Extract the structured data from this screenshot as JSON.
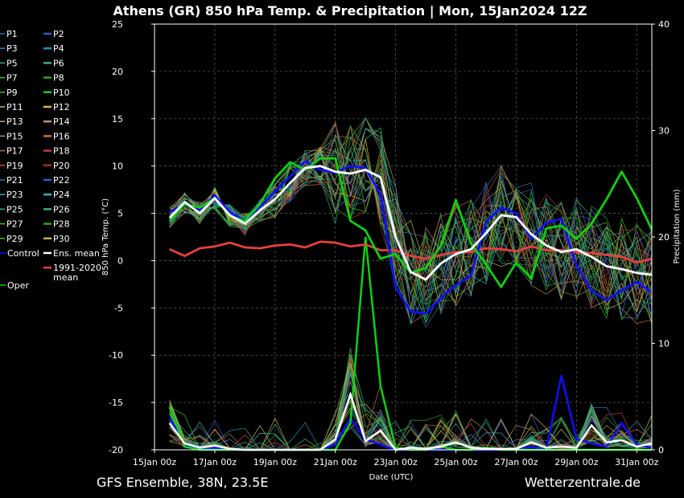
{
  "chart_data": {
    "type": "line",
    "title": "Athens  (GR)  850 hPa Temp. & Precipitation | Mon, 15Jan2024 12Z",
    "xlabel": "Date (UTC)",
    "ylabel": "850 hPa Temp. (°C)",
    "y2label": "Precipitation (mm)",
    "x_ticks": [
      "15Jan 00z",
      "17Jan 00z",
      "19Jan 00z",
      "21Jan 00z",
      "23Jan 00z",
      "25Jan 00z",
      "27Jan 00z",
      "29Jan 00z",
      "31Jan 00z"
    ],
    "ylim": [
      -20,
      25
    ],
    "y_ticks": [
      25,
      20,
      15,
      10,
      5,
      0,
      -5,
      -10,
      -15,
      -20
    ],
    "y2lim": [
      0,
      40
    ],
    "y2_ticks": [
      40,
      30,
      20,
      10,
      0
    ],
    "grid": true,
    "x_days": [
      0.5,
      1,
      1.5,
      2,
      2.5,
      3,
      3.5,
      4,
      4.5,
      5,
      5.5,
      6,
      6.5,
      7,
      7.5,
      8,
      8.5,
      9,
      9.5,
      10,
      10.5,
      11,
      11.5,
      12,
      12.5,
      13,
      13.5,
      14,
      14.5,
      15,
      15.5,
      16,
      16.5
    ],
    "xlim_days": [
      0,
      16.5
    ],
    "series": [
      {
        "name": "Ens. mean",
        "role": "mean",
        "values": [
          4.5,
          6.2,
          5.0,
          6.6,
          4.8,
          3.9,
          5.3,
          6.5,
          8.2,
          9.8,
          10.0,
          9.4,
          9.2,
          9.6,
          8.8,
          2.5,
          -1.2,
          -2.0,
          -0.3,
          0.7,
          1.2,
          2.9,
          4.8,
          4.6,
          2.8,
          1.6,
          0.9,
          1.2,
          0.4,
          -0.6,
          -0.9,
          -1.3,
          -1.5
        ]
      },
      {
        "name": "Control",
        "role": "control",
        "values": [
          5.1,
          6.0,
          5.4,
          6.9,
          5.1,
          4.2,
          5.7,
          7.3,
          8.9,
          10.5,
          9.6,
          9.3,
          10.0,
          9.8,
          7.0,
          -2.8,
          -5.4,
          -5.6,
          -3.9,
          -2.6,
          -1.6,
          4.1,
          5.6,
          5.0,
          2.3,
          4.0,
          4.4,
          -0.5,
          -3.2,
          -4.2,
          -3.1,
          -2.3,
          -3.3
        ]
      },
      {
        "name": "Oper",
        "role": "oper",
        "values": [
          4.2,
          6.0,
          5.6,
          6.6,
          4.7,
          4.2,
          6.0,
          8.7,
          10.4,
          9.6,
          10.8,
          10.8,
          4.2,
          3.2,
          0.2,
          0.7,
          -1.3,
          -0.8,
          1.6,
          6.4,
          1.8,
          -0.4,
          -2.8,
          -0.2,
          -1.9,
          3.4,
          3.7,
          2.3,
          3.9,
          6.5,
          9.4,
          6.6,
          3.3
        ]
      },
      {
        "name": "1991-2020 mean",
        "role": "climate",
        "values": [
          1.2,
          0.5,
          1.3,
          1.5,
          1.9,
          1.4,
          1.3,
          1.6,
          1.7,
          1.4,
          2.0,
          1.9,
          1.5,
          1.7,
          1.1,
          1.1,
          0.5,
          0.2,
          0.6,
          0.9,
          0.9,
          1.3,
          1.2,
          1.0,
          1.5,
          1.1,
          1.1,
          0.9,
          0.8,
          0.6,
          0.4,
          -0.2,
          0.2
        ]
      }
    ],
    "members": [
      "P1",
      "P2",
      "P3",
      "P4",
      "P5",
      "P6",
      "P7",
      "P8",
      "P9",
      "P10",
      "P11",
      "P12",
      "P13",
      "P14",
      "P15",
      "P16",
      "P17",
      "P18",
      "P19",
      "P20",
      "P21",
      "P22",
      "P23",
      "P24",
      "P25",
      "P26",
      "P27",
      "P28",
      "P29",
      "P30"
    ],
    "member_colors": [
      "#3a6aa8",
      "#3a58c8",
      "#3a7ab0",
      "#2f8fb0",
      "#3aa0a8",
      "#3bb07a",
      "#4ac04a",
      "#3aa030",
      "#4ab828",
      "#25c825",
      "#c9b46a",
      "#d8b450",
      "#c8a070",
      "#c89060",
      "#c88a50",
      "#c07838",
      "#c06a4a",
      "#b84030",
      "#c04a3a",
      "#a03028",
      "#3a6ab0",
      "#3a58b8",
      "#3aa0b8",
      "#3ab0b0",
      "#35b890",
      "#3ab070",
      "#45b845",
      "#30a030",
      "#5ab828",
      "#c8b048"
    ],
    "precip_mean": [
      2.5,
      0.6,
      0.2,
      0.4,
      0.1,
      0,
      0,
      0,
      0,
      0,
      0,
      1,
      5.2,
      0.8,
      1.8,
      0,
      0.2,
      0.1,
      0.3,
      0.7,
      0.2,
      0.1,
      0.1,
      0.1,
      0.7,
      0.2,
      0.3,
      0.2,
      2.3,
      0.7,
      0.9,
      0.3,
      0.6
    ],
    "precip_control": [
      3,
      0.5,
      0,
      0.2,
      0,
      0,
      0,
      0,
      0,
      0,
      0,
      0.5,
      3,
      1,
      0.5,
      0,
      0,
      0,
      0,
      0,
      0,
      0,
      0,
      0,
      0.3,
      0,
      7,
      1,
      0.6,
      0.3,
      2.5,
      0.5,
      0.2
    ],
    "precip_oper": [
      4,
      0.3,
      0,
      0,
      0,
      0,
      0,
      0,
      0,
      0,
      0,
      0,
      2.5,
      20,
      6,
      0.2,
      0,
      0,
      0.3,
      0,
      0,
      0.2,
      0,
      0,
      0,
      0,
      0,
      0,
      0,
      0,
      0,
      0,
      0
    ],
    "legend": {
      "left_col": [
        "P1",
        "P3",
        "P5",
        "P7",
        "P9",
        "P11",
        "P13",
        "P15",
        "P17",
        "P19",
        "P21",
        "P23",
        "P25",
        "P27",
        "P29",
        "Control",
        "Oper"
      ],
      "right_col": [
        "P2",
        "P4",
        "P6",
        "P8",
        "P10",
        "P12",
        "P14",
        "P16",
        "P18",
        "P20",
        "P22",
        "P24",
        "P26",
        "P28",
        "P30",
        "Ens. mean",
        "1991-2020\nmean"
      ]
    }
  },
  "footer": {
    "left": "GFS Ensemble, 38N, 23.5E",
    "right": "Wetterzentrale.de"
  },
  "colors": {
    "mean": "#ffffff",
    "control": "#1010ff",
    "oper": "#10d010",
    "climate": "#e84040",
    "grid": "#555555",
    "background": "#000000"
  }
}
